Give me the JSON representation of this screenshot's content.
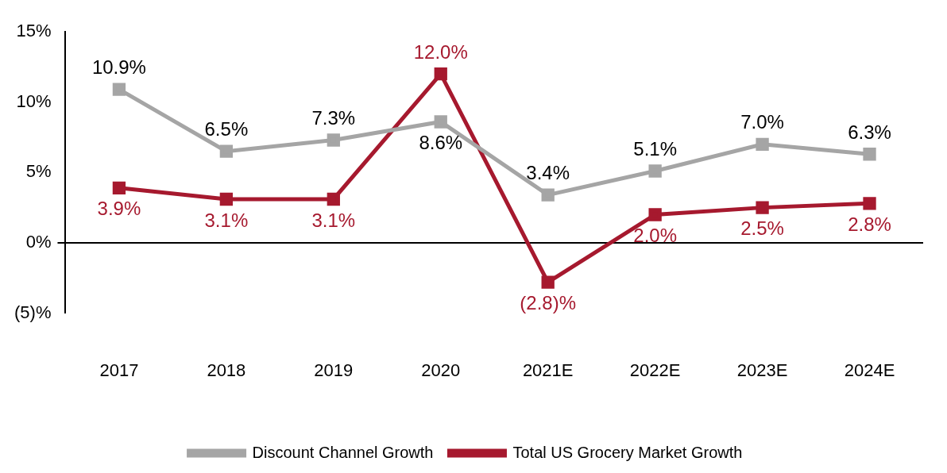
{
  "chart_data": {
    "type": "line",
    "categories": [
      "2017",
      "2018",
      "2019",
      "2020",
      "2021E",
      "2022E",
      "2023E",
      "2024E"
    ],
    "series": [
      {
        "name": "Discount Channel Growth",
        "color": "#A5A5A5",
        "marker": "square",
        "line_style": "solid",
        "values": [
          10.9,
          6.5,
          7.3,
          8.6,
          3.4,
          5.1,
          7.0,
          6.3
        ],
        "value_labels": [
          "10.9%",
          "6.5%",
          "7.3%",
          "8.6%",
          "3.4%",
          "5.1%",
          "7.0%",
          "6.3%"
        ]
      },
      {
        "name": "Total US Grocery Market Growth",
        "color": "#A6192E",
        "marker": "square",
        "line_style": "solid",
        "values": [
          3.9,
          3.1,
          3.1,
          12.0,
          -2.8,
          2.0,
          2.5,
          2.8
        ],
        "value_labels": [
          "3.9%",
          "3.1%",
          "3.1%",
          "12.0%",
          "(2.8)%",
          "2.0%",
          "2.5%",
          "2.8%"
        ]
      }
    ],
    "ylim": [
      -5,
      15
    ],
    "yticks": [
      {
        "value": -5,
        "label": "(5)%"
      },
      {
        "value": 0,
        "label": "0%"
      },
      {
        "value": 5,
        "label": "5%"
      },
      {
        "value": 10,
        "label": "10%"
      },
      {
        "value": 15,
        "label": "15%"
      }
    ],
    "grid": false,
    "legend": "bottom",
    "data_labels": true
  }
}
